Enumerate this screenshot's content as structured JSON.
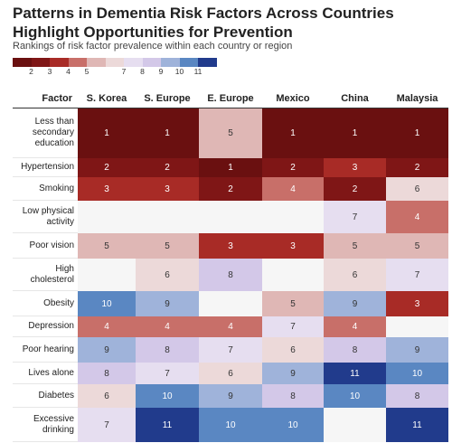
{
  "chart_data": {
    "type": "heatmap",
    "title": "Patterns in Dementia Risk Factors Across Countries Highlight Opportunities for Prevention",
    "subtitle": "Rankings of risk factor prevalence within each country or region",
    "row_header": "Factor",
    "columns": [
      "S. Korea",
      "S. Europe",
      "E. Europe",
      "Mexico",
      "China",
      "Malaysia"
    ],
    "rows": [
      "Less than secondary education",
      "Hypertension",
      "Smoking",
      "Low physical activity",
      "Poor vision",
      "High cholesterol",
      "Obesity",
      "Depression",
      "Poor hearing",
      "Lives alone",
      "Diabetes",
      "Excessive drinking"
    ],
    "values": [
      [
        1,
        1,
        5,
        1,
        1,
        1
      ],
      [
        2,
        2,
        1,
        2,
        3,
        2
      ],
      [
        3,
        3,
        2,
        4,
        2,
        6
      ],
      [
        null,
        null,
        null,
        null,
        7,
        4
      ],
      [
        5,
        5,
        3,
        3,
        5,
        5
      ],
      [
        null,
        6,
        8,
        null,
        6,
        7
      ],
      [
        10,
        9,
        null,
        5,
        9,
        3
      ],
      [
        4,
        4,
        4,
        7,
        4,
        null
      ],
      [
        9,
        8,
        7,
        6,
        8,
        9
      ],
      [
        8,
        7,
        6,
        9,
        11,
        10
      ],
      [
        6,
        10,
        9,
        8,
        10,
        8
      ],
      [
        7,
        11,
        10,
        10,
        null,
        11
      ]
    ],
    "colors": [
      "#6a1010",
      "#7f1616",
      "#a82b26",
      "#c86f69",
      "#dfb7b5",
      "#ecd9d9",
      "#e6def0",
      "#d3c8e8",
      "#9fb3da",
      "#5a87c2",
      "#213b8c"
    ],
    "legend_ticks": [
      2,
      3,
      4,
      5,
      7,
      8,
      9,
      10,
      11
    ]
  }
}
